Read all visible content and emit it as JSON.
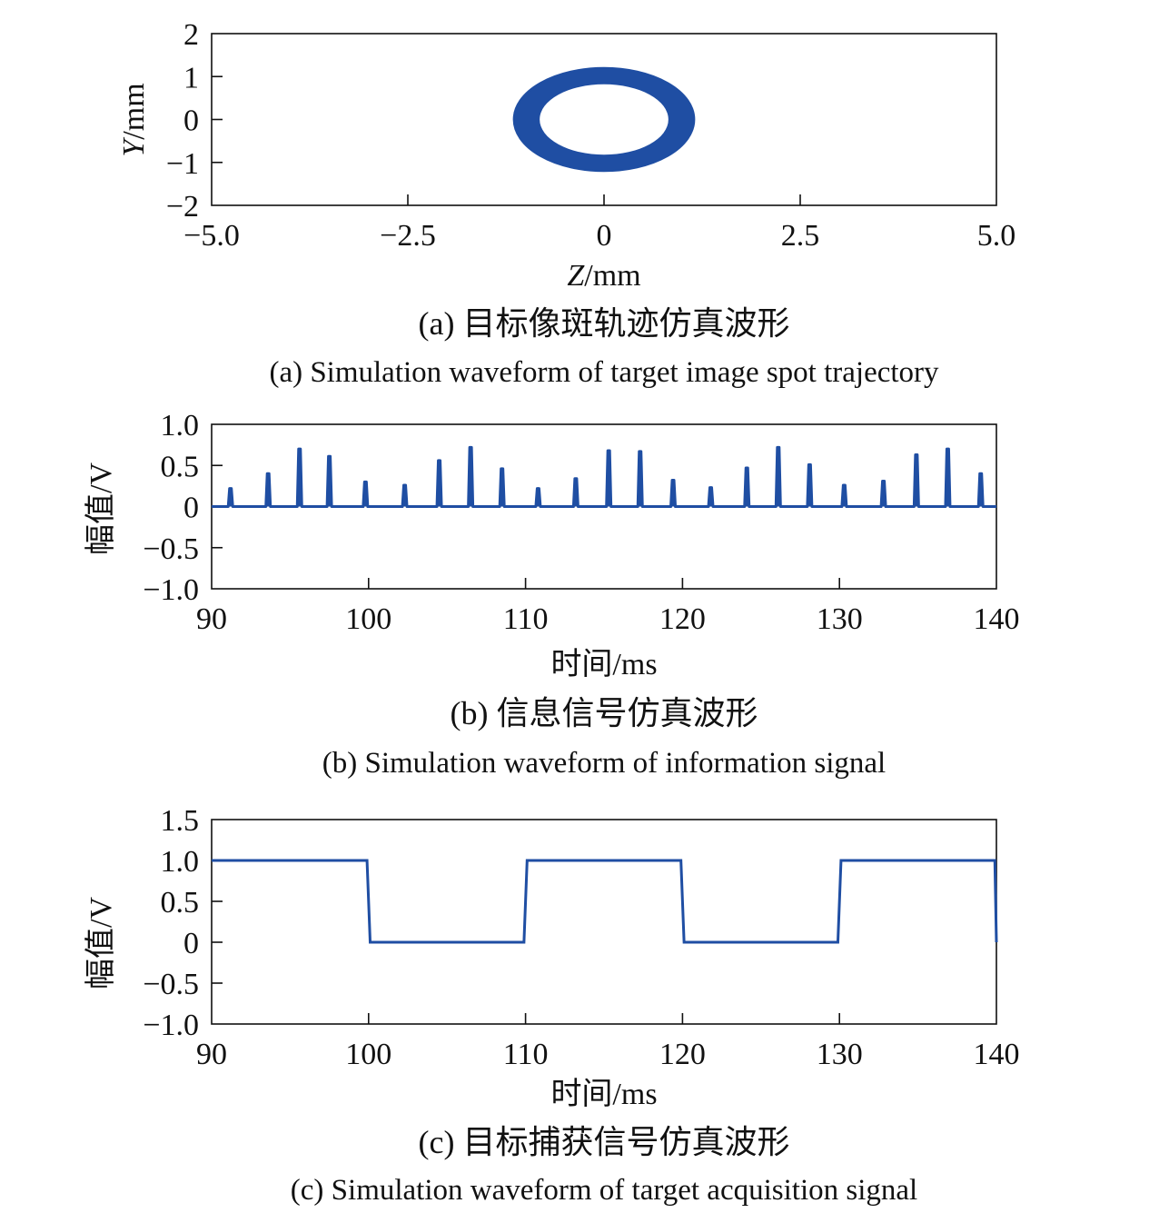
{
  "chart_data": [
    {
      "type": "scatter",
      "panel": "a",
      "xlabel_var": "Z",
      "xlabel_unit": "/mm",
      "ylabel_var": "Y",
      "ylabel_unit": "/mm",
      "xlim": [
        -5.0,
        5.0
      ],
      "ylim": [
        -2,
        2
      ],
      "x_ticks": [
        "−5.0",
        "−2.5",
        "0",
        "2.5",
        "5.0"
      ],
      "x_tick_values": [
        -5.0,
        -2.5,
        0,
        2.5,
        5.0
      ],
      "y_ticks": [
        "2",
        "1",
        "0",
        "−1",
        "−2"
      ],
      "y_tick_values": [
        2,
        1,
        0,
        -1,
        -2
      ],
      "series": [
        {
          "shape": "ellipse-band",
          "center": [
            0,
            0
          ],
          "outer_radii": [
            1.15,
            1.2
          ],
          "inner_radii": [
            0.82,
            0.82
          ],
          "color": "#1f4ea3"
        }
      ],
      "caption_cn": "(a) 目标像斑轨迹仿真波形",
      "caption_en": "(a) Simulation waveform of target image spot trajectory"
    },
    {
      "type": "line",
      "panel": "b",
      "xlabel": "时间/ms",
      "ylabel": "幅值/V",
      "xlim": [
        90,
        140
      ],
      "ylim": [
        -1.0,
        1.0
      ],
      "x_ticks": [
        "90",
        "100",
        "110",
        "120",
        "130",
        "140"
      ],
      "x_tick_values": [
        90,
        100,
        110,
        120,
        130,
        140
      ],
      "y_ticks": [
        "1.0",
        "0.5",
        "0",
        "−0.5",
        "−1.0"
      ],
      "y_tick_values": [
        1.0,
        0.5,
        0,
        -0.5,
        -1.0
      ],
      "baseline": 0,
      "pulses": [
        {
          "t": 91.2,
          "v": 0.22
        },
        {
          "t": 93.6,
          "v": 0.4
        },
        {
          "t": 95.6,
          "v": 0.7
        },
        {
          "t": 97.5,
          "v": 0.61
        },
        {
          "t": 99.8,
          "v": 0.3
        },
        {
          "t": 102.3,
          "v": 0.26
        },
        {
          "t": 104.5,
          "v": 0.56
        },
        {
          "t": 106.5,
          "v": 0.72
        },
        {
          "t": 108.5,
          "v": 0.46
        },
        {
          "t": 110.8,
          "v": 0.22
        },
        {
          "t": 113.2,
          "v": 0.34
        },
        {
          "t": 115.3,
          "v": 0.68
        },
        {
          "t": 117.3,
          "v": 0.67
        },
        {
          "t": 119.4,
          "v": 0.32
        },
        {
          "t": 121.8,
          "v": 0.23
        },
        {
          "t": 124.1,
          "v": 0.47
        },
        {
          "t": 126.1,
          "v": 0.72
        },
        {
          "t": 128.1,
          "v": 0.51
        },
        {
          "t": 130.3,
          "v": 0.26
        },
        {
          "t": 132.8,
          "v": 0.31
        },
        {
          "t": 134.9,
          "v": 0.63
        },
        {
          "t": 136.9,
          "v": 0.7
        },
        {
          "t": 139.0,
          "v": 0.4
        }
      ],
      "color": "#1f4ea3",
      "caption_cn": "(b) 信息信号仿真波形",
      "caption_en": "(b) Simulation waveform of information signal"
    },
    {
      "type": "line",
      "panel": "c",
      "xlabel": "时间/ms",
      "ylabel": "幅值/V",
      "xlim": [
        90,
        140
      ],
      "ylim": [
        -1.0,
        1.5
      ],
      "x_ticks": [
        "90",
        "100",
        "110",
        "120",
        "130",
        "140"
      ],
      "x_tick_values": [
        90,
        100,
        110,
        120,
        130,
        140
      ],
      "y_ticks": [
        "1.5",
        "1.0",
        "0.5",
        "0",
        "−0.5",
        "−1.0"
      ],
      "y_tick_values": [
        1.5,
        1.0,
        0.5,
        0,
        -0.5,
        -1.0
      ],
      "series": [
        {
          "x": [
            90,
            99.9,
            100.1,
            109.9,
            110.1,
            119.9,
            120.1,
            129.9,
            130.1,
            139.9,
            140.0
          ],
          "y": [
            1.0,
            1.0,
            0,
            0,
            1.0,
            1.0,
            0,
            0,
            1.0,
            1.0,
            0
          ]
        }
      ],
      "color": "#1f4ea3",
      "caption_cn": "(c) 目标捕获信号仿真波形",
      "caption_en": "(c) Simulation waveform of target acquisition signal"
    }
  ]
}
